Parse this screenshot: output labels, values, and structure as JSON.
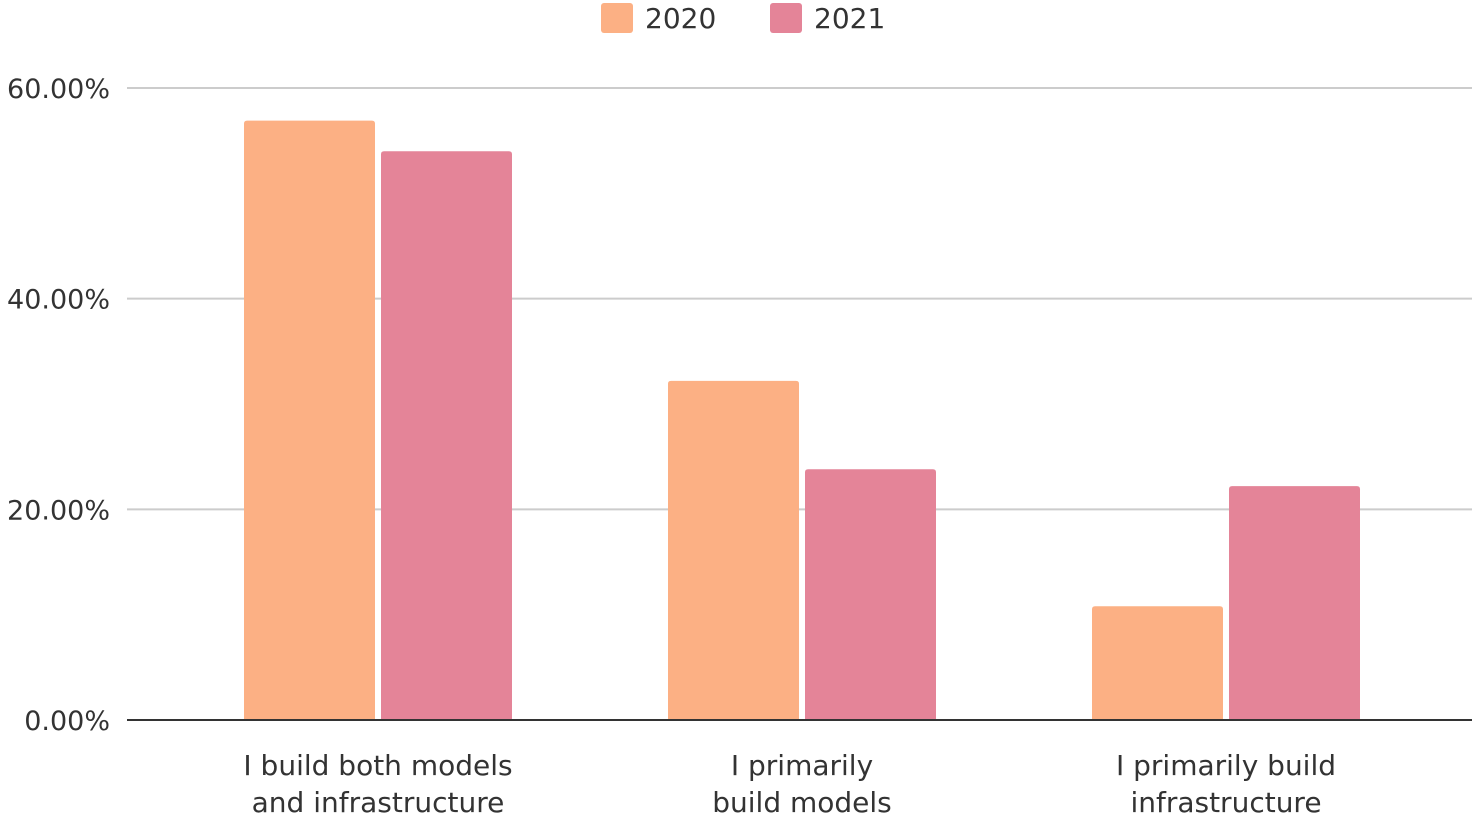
{
  "chart_data": {
    "type": "bar",
    "title": "",
    "xlabel": "",
    "ylabel": "",
    "categories": [
      [
        "I build both models",
        "and infrastructure"
      ],
      [
        "I primarily",
        "build models"
      ],
      [
        "I primarily build",
        "infrastructure"
      ]
    ],
    "series": [
      {
        "name": "2020",
        "color": "#FCB084",
        "values": [
          56.9,
          32.2,
          10.8
        ]
      },
      {
        "name": "2021",
        "color": "#E48498",
        "values": [
          54.0,
          23.8,
          22.2
        ]
      }
    ],
    "ylim": [
      0,
      60
    ],
    "yticks": [
      {
        "value": 0,
        "label": "0.00%"
      },
      {
        "value": 20,
        "label": "20.00%"
      },
      {
        "value": 40,
        "label": "40.00%"
      },
      {
        "value": 60,
        "label": "60.00%"
      }
    ],
    "grid": true,
    "legend_position": "top-center"
  }
}
